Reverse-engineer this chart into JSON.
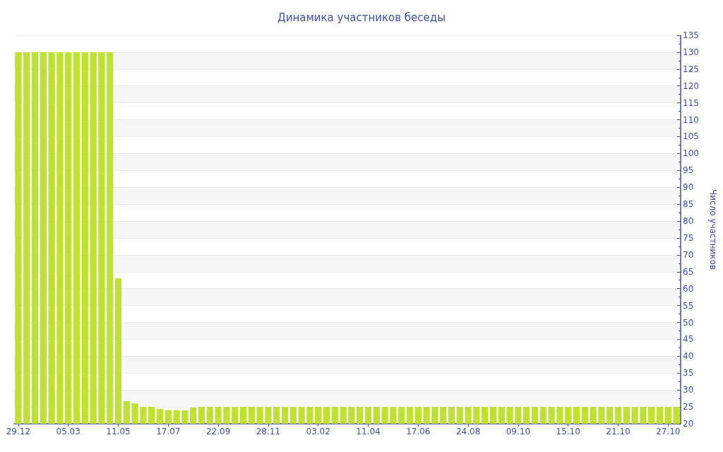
{
  "chart_data": {
    "type": "bar",
    "title": "Динамика участников беседы",
    "ylabel": "Число участников",
    "categories": [
      "29.12",
      null,
      null,
      null,
      null,
      null,
      "05.03",
      null,
      null,
      null,
      null,
      null,
      "11.05",
      null,
      null,
      null,
      null,
      null,
      "17.07",
      null,
      null,
      null,
      null,
      null,
      "22.09",
      null,
      null,
      null,
      null,
      null,
      "28.11",
      null,
      null,
      null,
      null,
      null,
      "03.02",
      null,
      null,
      null,
      null,
      null,
      "11.04",
      null,
      null,
      null,
      null,
      null,
      "17.06",
      null,
      null,
      null,
      null,
      null,
      "24.08",
      null,
      null,
      null,
      null,
      null,
      "09.10",
      null,
      null,
      null,
      null,
      null,
      "15.10",
      null,
      null,
      null,
      null,
      null,
      "21.10",
      null,
      null,
      null,
      null,
      null,
      "27.10",
      null
    ],
    "values": [
      130,
      130,
      130,
      130,
      130,
      130,
      130,
      130,
      130,
      130,
      130,
      130,
      63,
      26.7,
      26,
      25,
      25,
      24.4,
      24,
      24,
      24,
      24.8,
      25,
      25,
      25,
      25,
      25,
      25,
      25,
      25,
      25,
      25,
      25,
      25,
      25,
      25,
      25,
      25,
      25,
      25,
      25,
      25,
      25,
      25,
      25,
      25,
      25,
      25,
      25,
      25,
      25,
      25,
      25,
      25,
      25,
      25,
      25,
      25,
      25,
      25,
      25,
      25,
      25,
      25,
      25,
      25,
      25,
      25,
      25,
      25,
      25,
      25,
      25,
      25,
      25,
      25,
      25,
      25,
      25,
      25
    ],
    "color": "#bee22f",
    "ylim": [
      20,
      135
    ],
    "yticks": [
      20,
      25,
      30,
      35,
      40,
      45,
      50,
      55,
      60,
      65,
      70,
      75,
      80,
      85,
      90,
      95,
      100,
      105,
      110,
      115,
      120,
      125,
      130,
      135
    ],
    "grid": "y"
  }
}
